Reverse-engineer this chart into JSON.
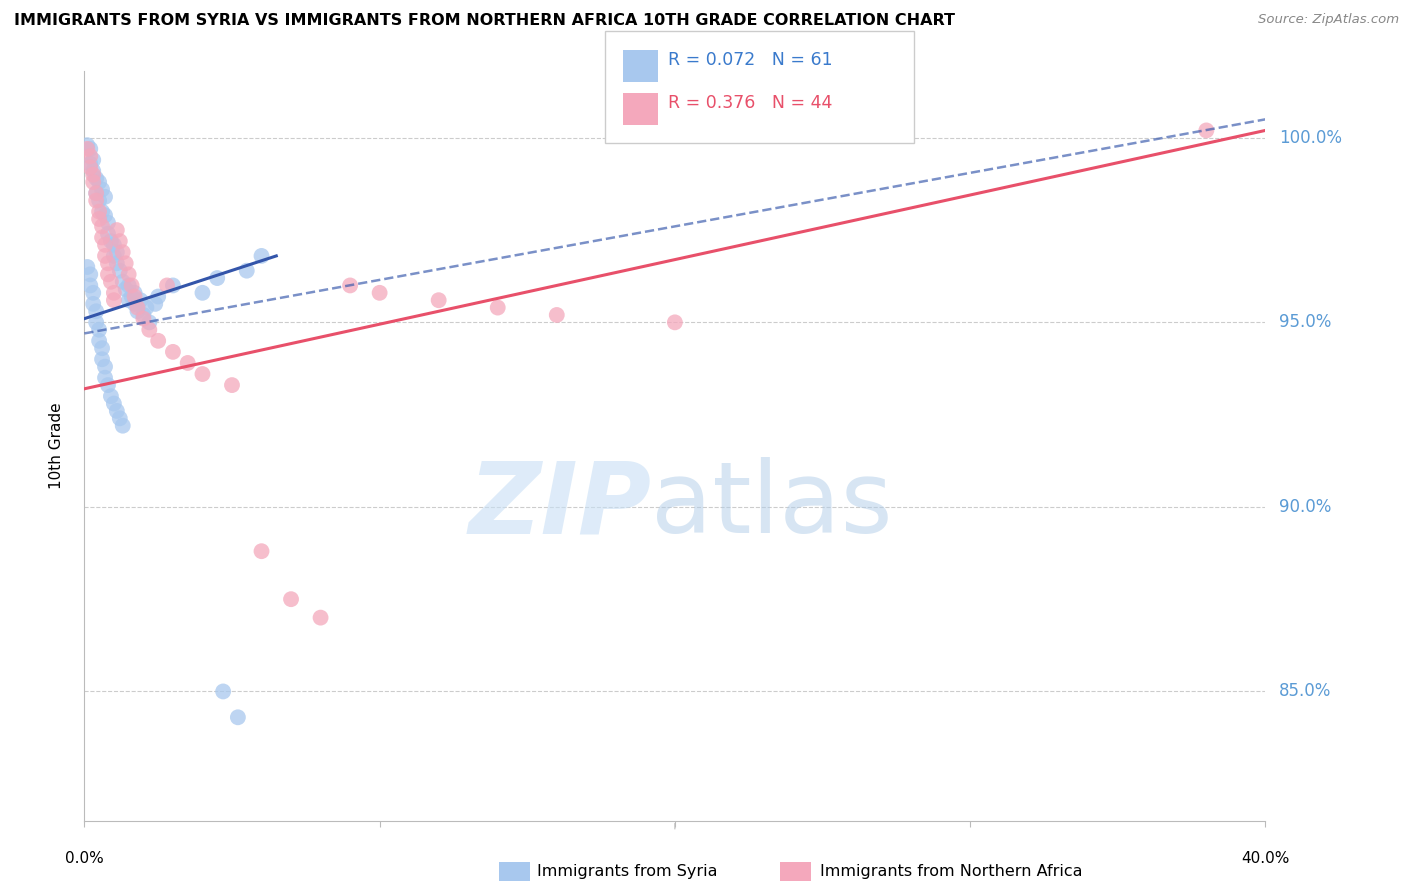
{
  "title": "IMMIGRANTS FROM SYRIA VS IMMIGRANTS FROM NORTHERN AFRICA 10TH GRADE CORRELATION CHART",
  "source": "Source: ZipAtlas.com",
  "ylabel": "10th Grade",
  "ylabel_ticks": [
    "100.0%",
    "95.0%",
    "90.0%",
    "85.0%"
  ],
  "ylabel_tick_values": [
    1.0,
    0.95,
    0.9,
    0.85
  ],
  "xmin": 0.0,
  "xmax": 0.4,
  "ymin": 0.815,
  "ymax": 1.018,
  "legend_blue_R": "0.072",
  "legend_blue_N": "61",
  "legend_pink_R": "0.376",
  "legend_pink_N": "44",
  "blue_color": "#A8C8EE",
  "pink_color": "#F4A8BC",
  "blue_line_color": "#3355AA",
  "pink_line_color": "#E8506A",
  "blue_line_x": [
    0.0,
    0.065
  ],
  "blue_line_y": [
    0.951,
    0.968
  ],
  "pink_line_x": [
    0.0,
    0.4
  ],
  "pink_line_y": [
    0.932,
    1.002
  ],
  "dashed_line_x": [
    0.0,
    0.4
  ],
  "dashed_line_y": [
    0.947,
    1.005
  ],
  "blue_scatter_x": [
    0.001,
    0.002,
    0.002,
    0.003,
    0.003,
    0.004,
    0.004,
    0.005,
    0.005,
    0.006,
    0.006,
    0.007,
    0.007,
    0.008,
    0.008,
    0.009,
    0.01,
    0.01,
    0.011,
    0.011,
    0.012,
    0.013,
    0.014,
    0.015,
    0.016,
    0.017,
    0.018,
    0.02,
    0.022,
    0.024,
    0.001,
    0.002,
    0.002,
    0.003,
    0.003,
    0.004,
    0.004,
    0.005,
    0.005,
    0.006,
    0.006,
    0.007,
    0.007,
    0.008,
    0.009,
    0.01,
    0.011,
    0.012,
    0.013,
    0.015,
    0.017,
    0.019,
    0.021,
    0.025,
    0.03,
    0.04,
    0.045,
    0.055,
    0.06,
    0.047,
    0.052
  ],
  "blue_scatter_y": [
    0.998,
    0.997,
    0.993,
    0.991,
    0.994,
    0.989,
    0.985,
    0.988,
    0.983,
    0.986,
    0.98,
    0.984,
    0.979,
    0.977,
    0.974,
    0.972,
    0.971,
    0.968,
    0.969,
    0.966,
    0.964,
    0.961,
    0.959,
    0.956,
    0.957,
    0.955,
    0.953,
    0.952,
    0.95,
    0.955,
    0.965,
    0.963,
    0.96,
    0.958,
    0.955,
    0.953,
    0.95,
    0.948,
    0.945,
    0.943,
    0.94,
    0.938,
    0.935,
    0.933,
    0.93,
    0.928,
    0.926,
    0.924,
    0.922,
    0.96,
    0.958,
    0.956,
    0.954,
    0.957,
    0.96,
    0.958,
    0.962,
    0.964,
    0.968,
    0.85,
    0.843
  ],
  "pink_scatter_x": [
    0.001,
    0.002,
    0.002,
    0.003,
    0.003,
    0.004,
    0.004,
    0.005,
    0.005,
    0.006,
    0.006,
    0.007,
    0.007,
    0.008,
    0.008,
    0.009,
    0.01,
    0.01,
    0.011,
    0.012,
    0.013,
    0.014,
    0.015,
    0.016,
    0.017,
    0.018,
    0.02,
    0.022,
    0.025,
    0.028,
    0.03,
    0.035,
    0.04,
    0.05,
    0.06,
    0.07,
    0.08,
    0.09,
    0.1,
    0.12,
    0.14,
    0.16,
    0.2,
    0.38
  ],
  "pink_scatter_y": [
    0.997,
    0.995,
    0.992,
    0.99,
    0.988,
    0.985,
    0.983,
    0.98,
    0.978,
    0.976,
    0.973,
    0.971,
    0.968,
    0.966,
    0.963,
    0.961,
    0.958,
    0.956,
    0.975,
    0.972,
    0.969,
    0.966,
    0.963,
    0.96,
    0.957,
    0.954,
    0.951,
    0.948,
    0.945,
    0.96,
    0.942,
    0.939,
    0.936,
    0.933,
    0.888,
    0.875,
    0.87,
    0.96,
    0.958,
    0.956,
    0.954,
    0.952,
    0.95,
    1.002
  ]
}
